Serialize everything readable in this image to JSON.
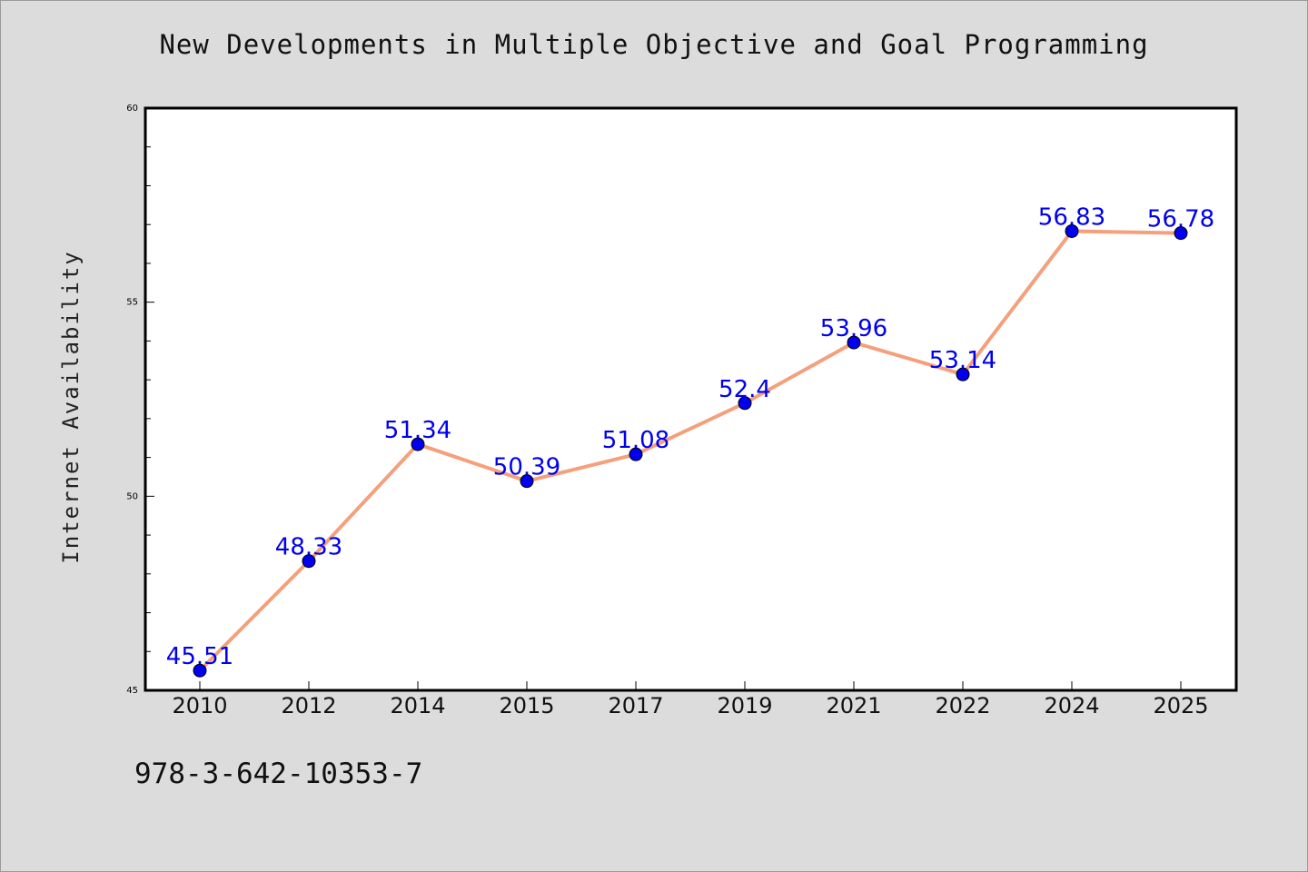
{
  "chart_data": {
    "type": "line",
    "title": "New Developments in Multiple Objective and Goal Programming",
    "xlabel": "",
    "ylabel": "Internet Availability",
    "categories": [
      "2010",
      "2012",
      "2014",
      "2015",
      "2017",
      "2019",
      "2021",
      "2022",
      "2024",
      "2025"
    ],
    "series": [
      {
        "values": [
          45.51,
          48.33,
          51.34,
          50.39,
          51.08,
          52.4,
          53.96,
          53.14,
          56.83,
          56.78
        ],
        "labels": [
          "45.51",
          "48.33",
          "51.34",
          "50.39",
          "51.08",
          "52.4",
          "53.96",
          "53.14",
          "56.83",
          "56.78"
        ],
        "line_color": "#f4a07c",
        "marker_color": "#0000ee"
      }
    ],
    "ylim": [
      45,
      60
    ],
    "y_ticks": [
      "45",
      "50",
      "55",
      "60"
    ],
    "grid": false,
    "legend": "none"
  },
  "footer": {
    "isbn": "978-3-642-10353-7"
  },
  "colors": {
    "background": "#dcdcdc",
    "plot_area": "#ffffff",
    "line": "#f4a07c",
    "marker": "#0000ee",
    "data_label": "#0000ee"
  }
}
